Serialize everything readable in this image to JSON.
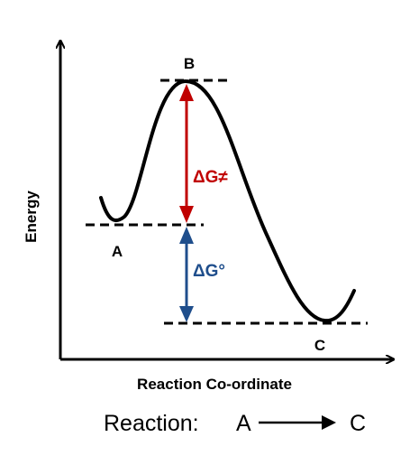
{
  "diagram": {
    "type": "reaction-energy-profile",
    "y_axis_label": "Energy",
    "x_axis_label": "Reaction Co-ordinate",
    "points": {
      "reactant": "A",
      "transition_state": "B",
      "product": "C"
    },
    "activation_energy_label": "ΔG≠",
    "standard_free_energy_label": "ΔG°",
    "reaction": {
      "prefix": "Reaction:",
      "reactant": "A",
      "product": "C"
    },
    "colors": {
      "activation_arrow": "#c00000",
      "standard_arrow": "#1f4e8c",
      "curve": "#000000"
    }
  }
}
